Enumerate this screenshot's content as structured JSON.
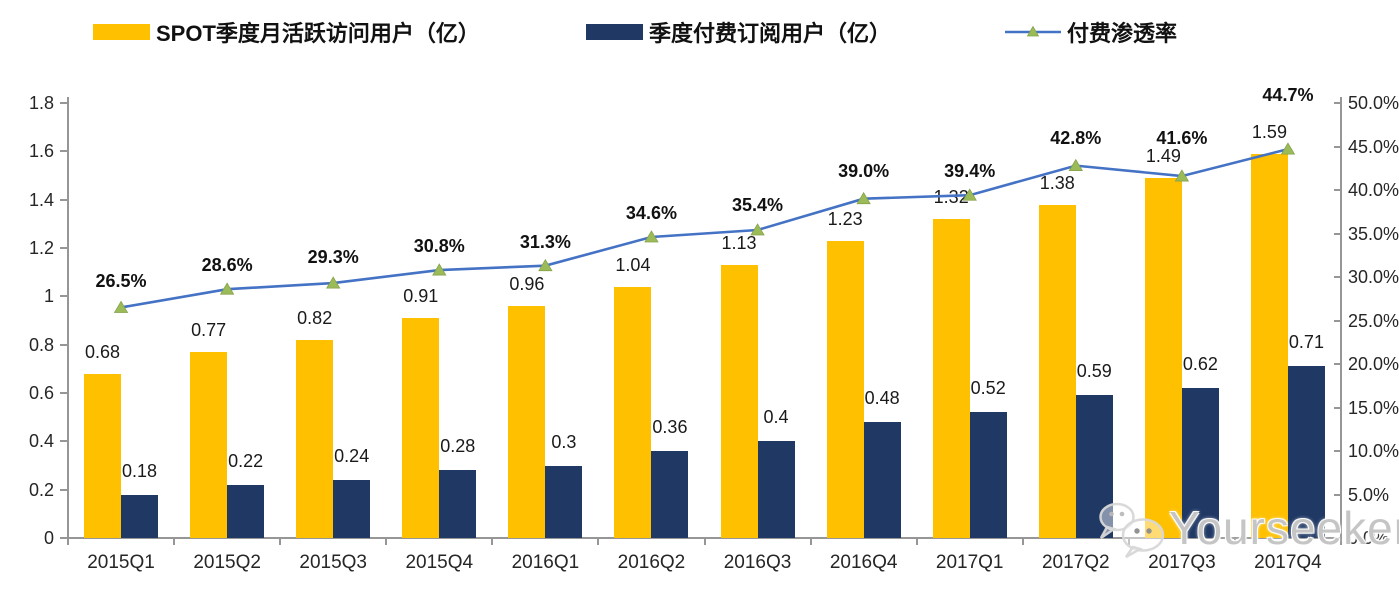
{
  "chart_data": {
    "type": "combo",
    "categories": [
      "2015Q1",
      "2015Q2",
      "2015Q3",
      "2015Q4",
      "2016Q1",
      "2016Q2",
      "2016Q3",
      "2016Q4",
      "2017Q1",
      "2017Q2",
      "2017Q3",
      "2017Q4"
    ],
    "series": [
      {
        "name": "SPOT季度月活跃访问用户（亿）",
        "type": "bar",
        "axis": "left",
        "color": "#FFC000",
        "values": [
          0.68,
          0.77,
          0.82,
          0.91,
          0.96,
          1.04,
          1.13,
          1.23,
          1.32,
          1.38,
          1.49,
          1.59
        ],
        "labels": [
          "0.68",
          "0.77",
          "0.82",
          "0.91",
          "0.96",
          "1.04",
          "1.13",
          "1.23",
          "1.32",
          "1.38",
          "1.49",
          "1.59"
        ]
      },
      {
        "name": "季度付费订阅用户（亿）",
        "type": "bar",
        "axis": "left",
        "color": "#1F3864",
        "values": [
          0.18,
          0.22,
          0.24,
          0.28,
          0.3,
          0.36,
          0.4,
          0.48,
          0.52,
          0.59,
          0.62,
          0.71
        ],
        "labels": [
          "0.18",
          "0.22",
          "0.24",
          "0.28",
          "0.3",
          "0.36",
          "0.4",
          "0.48",
          "0.52",
          "0.59",
          "0.62",
          "0.71"
        ]
      },
      {
        "name": "付费渗透率",
        "type": "line",
        "axis": "right",
        "color": "#4472C4",
        "marker_color": "#9BBB59",
        "values": [
          26.5,
          28.6,
          29.3,
          30.8,
          31.3,
          34.6,
          35.4,
          39.0,
          39.4,
          42.8,
          41.6,
          44.7
        ],
        "labels": [
          "26.5%",
          "28.6%",
          "29.3%",
          "30.8%",
          "31.3%",
          "34.6%",
          "35.4%",
          "39.0%",
          "39.4%",
          "42.8%",
          "41.6%",
          "44.7%"
        ],
        "label_dy": [
          -26,
          -24,
          -26,
          -24,
          -24,
          -24,
          -25,
          -28,
          -24,
          -28,
          -38,
          -54
        ]
      }
    ],
    "left_axis": {
      "min": 0,
      "max": 1.8,
      "ticks": [
        "0",
        "0.2",
        "0.4",
        "0.6",
        "0.8",
        "1",
        "1.2",
        "1.4",
        "1.6",
        "1.8"
      ]
    },
    "right_axis": {
      "min": 0,
      "max": 50,
      "ticks": [
        "0.0%",
        "5.0%",
        "10.0%",
        "15.0%",
        "20.0%",
        "25.0%",
        "30.0%",
        "35.0%",
        "40.0%",
        "45.0%",
        "50.0%"
      ]
    },
    "grid": false,
    "legend_position": "top"
  },
  "watermark": {
    "text": "Yourseeker"
  },
  "colors": {
    "bar_mau": "#FFC000",
    "bar_subs": "#1F3864",
    "line": "#4472C4",
    "marker": "#9BBB59",
    "axis": "#969696",
    "text": "#1a1a1a"
  }
}
